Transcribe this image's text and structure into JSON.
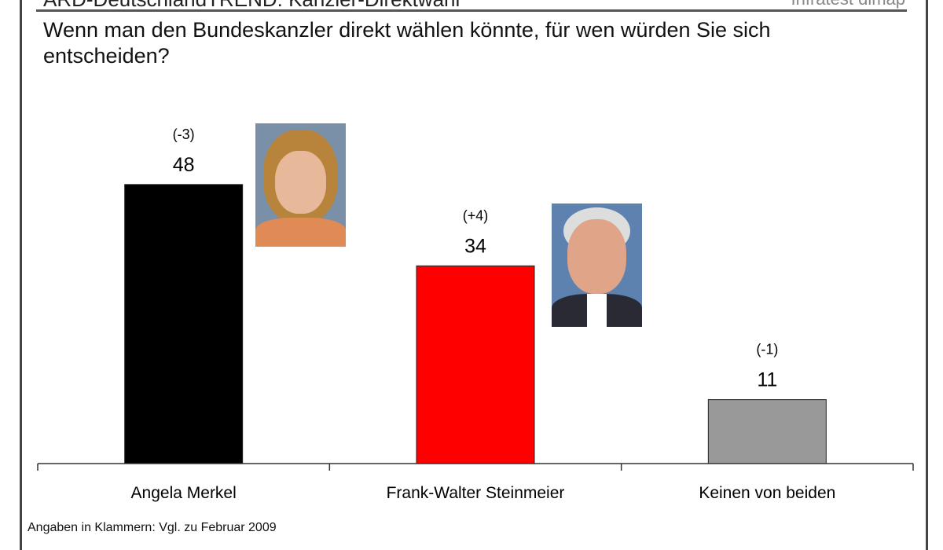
{
  "header": {
    "title": "ARD-DeutschlandTREND: Kanzler-Direktwahl",
    "brand": "Infratest dimap"
  },
  "question": "Wenn man den Bundeskanzler direkt wählen könnte, für wen würden Sie sich entscheiden?",
  "footer": "Angaben in Klammern: Vgl. zu Februar 2009",
  "chart_data": {
    "type": "bar",
    "categories": [
      "Angela Merkel",
      "Frank-Walter Steinmeier",
      "Keinen von beiden"
    ],
    "values": [
      48,
      34,
      11
    ],
    "changes": [
      "(-3)",
      "(+4)",
      "(-1)"
    ],
    "colors": [
      "#000000",
      "#ff0000",
      "#999999"
    ],
    "ylim": [
      0,
      50
    ],
    "grid": false
  }
}
